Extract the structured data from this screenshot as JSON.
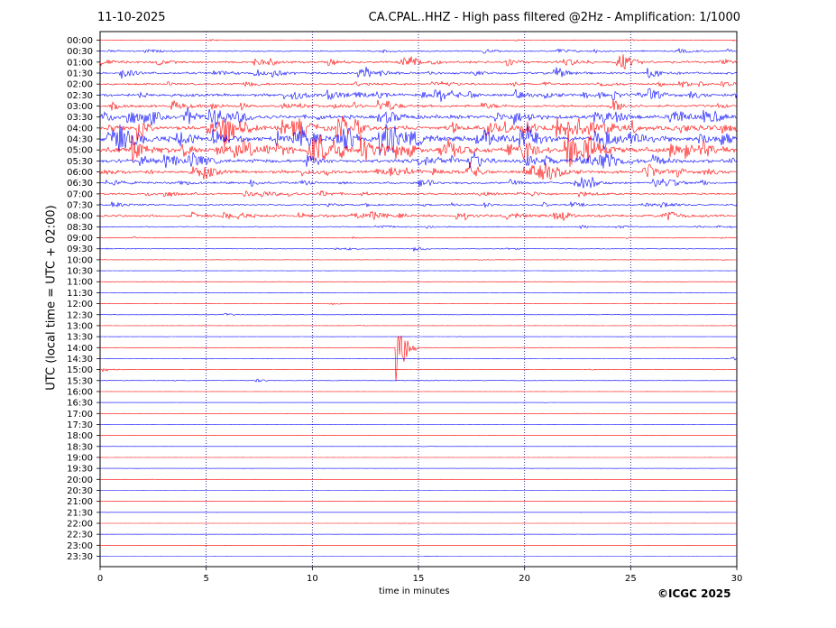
{
  "header": {
    "date": "11-10-2025",
    "title": "CA.CPAL..HHZ - High pass filtered @2Hz - Amplification: 1/1000"
  },
  "copyright": "©ICGC 2025",
  "colors": {
    "red": "#ff0000",
    "blue": "#0000ff",
    "grid": "#000080"
  },
  "chart_data": {
    "type": "line",
    "title": "CA.CPAL..HHZ - High pass filtered @2Hz - Amplification: 1/1000",
    "xlabel": "time in minutes",
    "ylabel": "UTC (local time = UTC + 02:00)",
    "xlim": [
      0,
      30
    ],
    "xticks": [
      0,
      5,
      10,
      15,
      20,
      25,
      30
    ],
    "vertical_grid": [
      5,
      10,
      15,
      20,
      25
    ],
    "rows": [
      "00:00",
      "00:30",
      "01:00",
      "01:30",
      "02:00",
      "02:30",
      "03:00",
      "03:30",
      "04:00",
      "04:30",
      "05:00",
      "05:30",
      "06:00",
      "06:30",
      "07:00",
      "07:30",
      "08:00",
      "08:30",
      "09:00",
      "09:30",
      "10:00",
      "10:30",
      "11:00",
      "11:30",
      "12:00",
      "12:30",
      "13:00",
      "13:30",
      "14:00",
      "14:30",
      "15:00",
      "15:30",
      "16:00",
      "16:30",
      "17:00",
      "17:30",
      "18:00",
      "18:30",
      "19:00",
      "19:30",
      "20:00",
      "20:30",
      "21:00",
      "21:30",
      "22:00",
      "22:30",
      "23:00",
      "23:30"
    ],
    "row_colors": [
      "red",
      "blue"
    ],
    "activity": [
      0.5,
      1.2,
      2.0,
      2.0,
      1.6,
      2.5,
      2.2,
      3.4,
      4.2,
      4.6,
      4.8,
      3.2,
      2.8,
      2.0,
      1.6,
      1.4,
      2.2,
      1.0,
      0.6,
      0.6,
      0.35,
      0.25,
      0.2,
      0.2,
      0.3,
      0.3,
      0.25,
      0.2,
      0.15,
      0.2,
      0.25,
      0.3,
      0.15,
      0.12,
      0.12,
      0.12,
      0.12,
      0.1,
      0.1,
      0.1,
      0.1,
      0.1,
      0.1,
      0.1,
      0.1,
      0.1,
      0.1,
      0.1
    ],
    "events": [
      {
        "row": 2,
        "minute": 19.2,
        "amp": 1.3
      },
      {
        "row": 2,
        "minute": 24.7,
        "amp": 1.3
      },
      {
        "row": 4,
        "minute": 27.3,
        "amp": 1.2
      },
      {
        "row": 5,
        "minute": 16.1,
        "amp": 1.2
      },
      {
        "row": 5,
        "minute": 19.6,
        "amp": 1.3
      },
      {
        "row": 8,
        "minute": 20.2,
        "amp": 1.1
      },
      {
        "row": 10,
        "minute": 28.5,
        "amp": 1.2
      },
      {
        "row": 12,
        "minute": 17.5,
        "amp": 1.1
      },
      {
        "row": 19,
        "minute": 14.8,
        "amp": 0.8
      },
      {
        "row": 25,
        "minute": 5.9,
        "amp": 0.5
      },
      {
        "row": 28,
        "minute": 14.0,
        "amp": 11.0
      },
      {
        "row": 29,
        "minute": 29.8,
        "amp": 0.6
      },
      {
        "row": 30,
        "minute": 0.2,
        "amp": 0.6
      },
      {
        "row": 31,
        "minute": 7.4,
        "amp": 0.5
      }
    ]
  }
}
